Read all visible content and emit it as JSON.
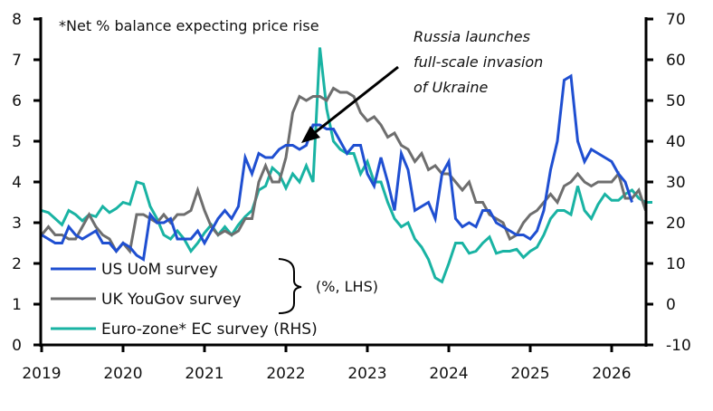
{
  "chart_data": {
    "type": "line",
    "title": "",
    "note": "*Net % balance expecting price rise",
    "annotation": [
      "Russia launches",
      "full-scale invasion",
      "of Ukraine"
    ],
    "annotation_target": {
      "date": "2022-02",
      "value_lhs": 5.0
    },
    "xlabel": "",
    "x_start": "2019-01",
    "x_ticks": [
      "2019",
      "2020",
      "2021",
      "2022",
      "2023",
      "2024",
      "2025",
      "2026"
    ],
    "x_range_years": [
      2019.0,
      2026.42
    ],
    "y_left": {
      "label": "%, LHS",
      "range": [
        0,
        8
      ],
      "ticks": [
        "0",
        "1",
        "2",
        "3",
        "4",
        "5",
        "6",
        "7",
        "8"
      ]
    },
    "y_right": {
      "label": "RHS",
      "range": [
        -10,
        70
      ],
      "ticks": [
        "-10",
        "0",
        "10",
        "20",
        "30",
        "40",
        "50",
        "60",
        "70"
      ]
    },
    "grid": false,
    "legend_position": "bottom-left",
    "legend_bracket_label": "(%, LHS)",
    "series": [
      {
        "name": "US UoM survey",
        "axis": "left",
        "color": "#1f4fd1",
        "values": [
          2.7,
          2.6,
          2.5,
          2.5,
          2.9,
          2.7,
          2.6,
          2.7,
          2.8,
          2.5,
          2.5,
          2.3,
          2.5,
          2.4,
          2.2,
          2.1,
          3.2,
          3.0,
          3.0,
          3.1,
          2.6,
          2.6,
          2.6,
          2.8,
          2.5,
          2.8,
          3.1,
          3.3,
          3.1,
          3.4,
          4.6,
          4.2,
          4.7,
          4.6,
          4.6,
          4.8,
          4.9,
          4.9,
          4.8,
          4.9,
          5.4,
          5.4,
          5.3,
          5.3,
          5.0,
          4.7,
          4.9,
          4.9,
          4.2,
          3.9,
          4.6,
          4.0,
          3.3,
          4.7,
          4.3,
          3.3,
          3.4,
          3.5,
          3.1,
          4.2,
          4.5,
          3.1,
          2.9,
          3.0,
          2.9,
          3.3,
          3.3,
          3.0,
          2.9,
          2.8,
          2.7,
          2.7,
          2.6,
          2.8,
          3.3,
          4.3,
          5.0,
          6.5,
          6.6,
          5.0,
          4.5,
          4.8,
          4.7,
          4.6,
          4.5,
          4.2,
          4.0,
          3.5
        ]
      },
      {
        "name": "UK YouGov survey",
        "axis": "left",
        "color": "#6e6e6e",
        "values": [
          2.7,
          2.9,
          2.7,
          2.7,
          2.6,
          2.6,
          2.9,
          3.2,
          2.9,
          2.7,
          2.6,
          2.3,
          2.5,
          2.3,
          3.2,
          3.2,
          3.1,
          3.0,
          3.2,
          3.0,
          3.2,
          3.2,
          3.3,
          3.8,
          3.3,
          2.9,
          2.7,
          2.8,
          2.7,
          2.8,
          3.1,
          3.1,
          4.0,
          4.4,
          4.0,
          4.0,
          4.6,
          5.7,
          6.1,
          6.0,
          6.1,
          6.1,
          6.0,
          6.3,
          6.2,
          6.2,
          6.1,
          5.7,
          5.5,
          5.6,
          5.4,
          5.1,
          5.2,
          4.9,
          4.8,
          4.5,
          4.7,
          4.3,
          4.4,
          4.2,
          4.2,
          4.0,
          3.8,
          4.0,
          3.5,
          3.5,
          3.2,
          3.1,
          3.0,
          2.6,
          2.7,
          3.0,
          3.2,
          3.3,
          3.5,
          3.7,
          3.5,
          3.9,
          4.0,
          4.2,
          4.0,
          3.9,
          4.0,
          4.0,
          4.0,
          4.2,
          3.6,
          3.6,
          3.8,
          3.3
        ]
      },
      {
        "name": "Euro-zone* EC survey (RHS)",
        "axis": "right",
        "color": "#19b3a3",
        "values": [
          23,
          22.5,
          21,
          19.5,
          23,
          22,
          20.5,
          22,
          21.5,
          24,
          22.5,
          23.5,
          25,
          24.5,
          30,
          29.5,
          24,
          21,
          17,
          16,
          18,
          16,
          13,
          15,
          17.5,
          19.5,
          17,
          19,
          17,
          19.5,
          21.5,
          23,
          28,
          29,
          33.5,
          32,
          28.5,
          32,
          30,
          34,
          30,
          63,
          48,
          40,
          38,
          37,
          37,
          32,
          35,
          30,
          30,
          25,
          21,
          19,
          20,
          16,
          14,
          11,
          6.5,
          5.5,
          10,
          15,
          15,
          12.5,
          13,
          15,
          16.5,
          12.5,
          13,
          13,
          13.5,
          11.5,
          13,
          14,
          17,
          21,
          23,
          23,
          22,
          29,
          23,
          21,
          24.5,
          27,
          25.5,
          25.5,
          27,
          28,
          26,
          25,
          25
        ]
      }
    ]
  }
}
